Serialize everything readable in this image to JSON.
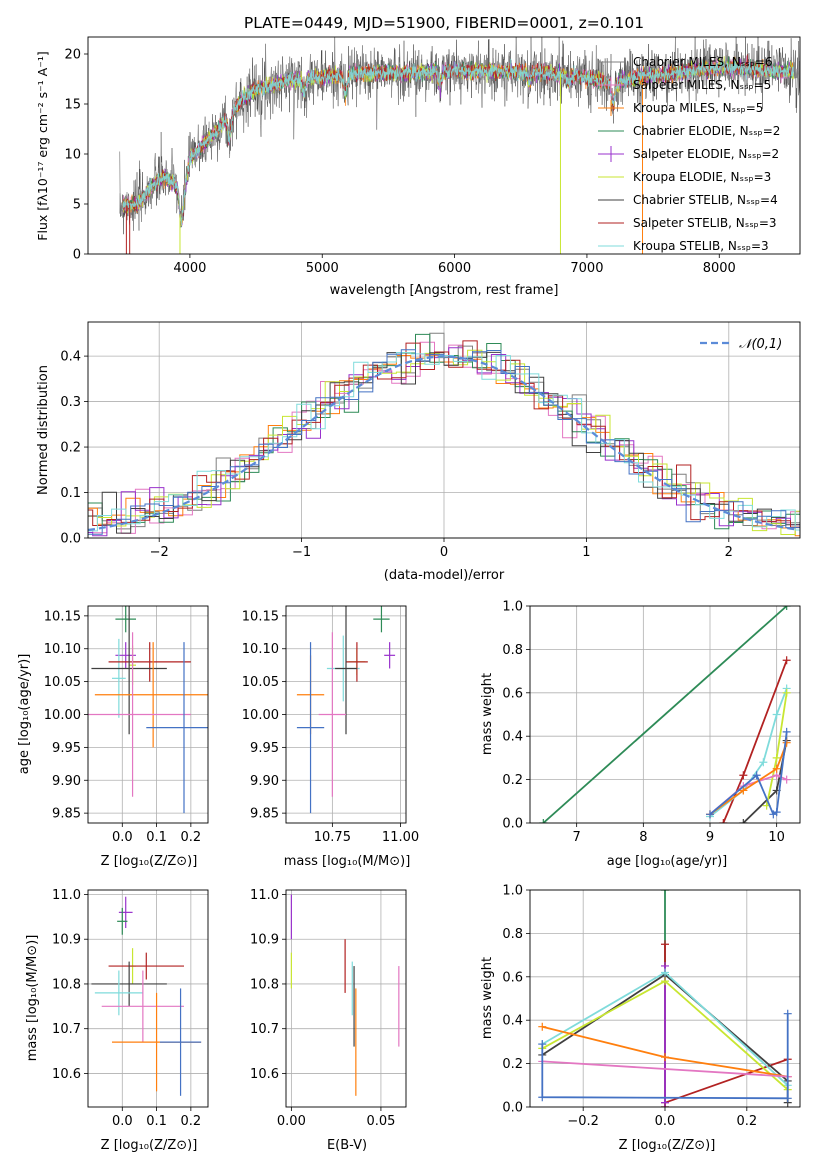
{
  "chart_data": [
    {
      "type": "line",
      "id": "spectrum",
      "title": "PLATE=0449, MJD=51900, FIBERID=0001, z=0.101",
      "xlabel": "wavelength [Angstrom, rest frame]",
      "ylabel": "Flux [fλ10⁻¹⁷ erg cm⁻² s⁻¹ A⁻¹]",
      "xlim": [
        3230,
        8610
      ],
      "ylim": [
        0,
        21.7
      ],
      "xticks": [
        4000,
        5000,
        6000,
        7000,
        8000
      ],
      "yticks": [
        0,
        5,
        10,
        15,
        20
      ],
      "grid": false,
      "legend_position": "upper-right",
      "continuum": {
        "x": [
          3470,
          3600,
          3700,
          3800,
          3900,
          3950,
          4000,
          4100,
          4200,
          4300,
          4400,
          4500,
          4600,
          4700,
          4800,
          4900,
          5000,
          5200,
          5400,
          5600,
          5800,
          6000,
          6200,
          6400,
          6600,
          6800,
          7000,
          7200,
          7400,
          7600,
          7800,
          8000,
          8200,
          8400,
          8610
        ],
        "y": [
          4.8,
          5.0,
          6.5,
          7.8,
          6.8,
          5.8,
          9.5,
          11.0,
          12.2,
          14.0,
          15.5,
          16.5,
          16.8,
          17.2,
          17.5,
          17.7,
          17.6,
          18.0,
          18.1,
          18.1,
          18.2,
          18.3,
          18.3,
          18.2,
          18.2,
          18.0,
          17.6,
          17.0,
          17.8,
          17.9,
          18.4,
          18.7,
          18.6,
          18.3,
          18.2
        ]
      },
      "dips": [
        [
          3934,
          3.0
        ],
        [
          4300,
          2.5
        ],
        [
          4861,
          1.5
        ],
        [
          5175,
          1.8
        ],
        [
          5890,
          1.2
        ],
        [
          6563,
          1.0
        ],
        [
          6860,
          0.8
        ],
        [
          7200,
          2.0
        ]
      ],
      "series": [
        {
          "name": "Chabrier MILES, N_SSP=6",
          "color": "#7f7f7f",
          "marker": "+"
        },
        {
          "name": "Salpeter MILES, N_SSP=5",
          "color": "#e377c2",
          "marker": "+"
        },
        {
          "name": "Kroupa MILES, N_SSP=5",
          "color": "#ff7f0e",
          "marker": "+"
        },
        {
          "name": "Chabrier ELODIE, N_SSP=2",
          "color": "#2e8b57",
          "marker": ""
        },
        {
          "name": "Salpeter ELODIE, N_SSP=2",
          "color": "#9932cc",
          "marker": "+"
        },
        {
          "name": "Kroupa ELODIE, N_SSP=3",
          "color": "#c8e632",
          "marker": ""
        },
        {
          "name": "Chabrier STELIB, N_SSP=4",
          "color": "#404040",
          "marker": ""
        },
        {
          "name": "Salpeter STELIB, N_SSP=3",
          "color": "#b22222",
          "marker": ""
        },
        {
          "name": "Kroupa STELIB, N_SSP=3",
          "color": "#7fdbdb",
          "marker": ""
        }
      ]
    },
    {
      "type": "histogram",
      "id": "residuals",
      "xlabel": "(data-model)/error",
      "ylabel": "Normed distribution",
      "xlim": [
        -2.5,
        2.5
      ],
      "ylim": [
        0,
        0.475
      ],
      "xticks": [
        -2,
        -1,
        0,
        1,
        2
      ],
      "yticks": [
        0.0,
        0.1,
        0.2,
        0.3,
        0.4
      ],
      "grid": true,
      "bin_width": 0.1,
      "legend_position": "upper-right",
      "reference_curve": {
        "name": "𝒩(0,1)",
        "color": "#5b8bd8",
        "dashed": true
      },
      "series_colors": [
        "#7f7f7f",
        "#e377c2",
        "#ff7f0e",
        "#2e8b57",
        "#9932cc",
        "#c8e632",
        "#404040",
        "#b22222",
        "#7fdbdb",
        "#4472c4"
      ]
    },
    {
      "type": "scatter",
      "id": "age-vs-Z",
      "xlabel": "Z [log₁₀(Z/Z⊙)]",
      "ylabel": "age  [log₁₀(age/yr)]",
      "xlim": [
        -0.1,
        0.25
      ],
      "ylim": [
        9.835,
        10.165
      ],
      "xticks": [
        0.0,
        0.1,
        0.2
      ],
      "xtick_labels": [
        "0.0",
        "0.1",
        "0.2"
      ],
      "yticks": [
        9.85,
        9.9,
        9.95,
        10.0,
        10.05,
        10.1,
        10.15
      ],
      "ytick_labels": [
        "9.85",
        "9.90",
        "9.95",
        "10.00",
        "10.05",
        "10.10",
        "10.15"
      ],
      "grid": true,
      "points": [
        {
          "x": 0.01,
          "y": 10.145,
          "xerr": 0.03,
          "yerr": 0.02,
          "color": "#2e8b57"
        },
        {
          "x": 0.01,
          "y": 10.09,
          "xerr": 0.03,
          "yerr": 0.02,
          "color": "#9932cc"
        },
        {
          "x": -0.01,
          "y": 10.055,
          "xerr": 0.02,
          "yerr": 0.06,
          "color": "#7fdbdb"
        },
        {
          "x": 0.03,
          "y": 10.075,
          "xerr": 0.01,
          "yerr": 0.03,
          "color": "#c8e632"
        },
        {
          "x": 0.08,
          "y": 10.08,
          "xerr": 0.12,
          "yerr": 0.03,
          "color": "#b22222"
        },
        {
          "x": 0.02,
          "y": 10.07,
          "xerr": 0.11,
          "yerr": 0.1,
          "color": "#404040"
        },
        {
          "x": 0.09,
          "y": 10.03,
          "xerr": 0.17,
          "yerr": 0.08,
          "color": "#ff7f0e"
        },
        {
          "x": 0.03,
          "y": 10.0,
          "xerr": 0.17,
          "yerr": 0.125,
          "color": "#e377c2"
        },
        {
          "x": 0.18,
          "y": 9.98,
          "xerr": 0.11,
          "yerr": 0.13,
          "color": "#4472c4"
        }
      ]
    },
    {
      "type": "scatter",
      "id": "age-vs-mass",
      "xlabel": "mass [log₁₀(M/M⊙)]",
      "ylabel": "",
      "xlim": [
        10.58,
        11.02
      ],
      "ylim": [
        9.835,
        10.165
      ],
      "xticks": [
        10.75,
        11.0
      ],
      "xtick_labels": [
        "10.75",
        "11.00"
      ],
      "yticks": [
        9.85,
        9.9,
        9.95,
        10.0,
        10.05,
        10.1,
        10.15
      ],
      "ytick_labels": [
        "9.85",
        "9.90",
        "9.95",
        "10.00",
        "10.05",
        "10.10",
        "10.15"
      ],
      "grid": true,
      "points": [
        {
          "x": 10.93,
          "y": 10.145,
          "xerr": 0.03,
          "yerr": 0.02,
          "color": "#2e8b57"
        },
        {
          "x": 10.96,
          "y": 10.09,
          "xerr": 0.02,
          "yerr": 0.02,
          "color": "#9932cc"
        },
        {
          "x": 10.79,
          "y": 10.07,
          "xerr": 0.06,
          "yerr": 0.05,
          "color": "#7fdbdb"
        },
        {
          "x": 10.84,
          "y": 10.08,
          "xerr": 0.03,
          "yerr": 0.02,
          "color": "#c8e632"
        },
        {
          "x": 10.84,
          "y": 10.08,
          "xerr": 0.04,
          "yerr": 0.03,
          "color": "#b22222"
        },
        {
          "x": 10.8,
          "y": 10.07,
          "xerr": 0.04,
          "yerr": 0.1,
          "color": "#404040"
        },
        {
          "x": 10.67,
          "y": 10.03,
          "xerr": 0.05,
          "yerr": 0.06,
          "color": "#ff7f0e"
        },
        {
          "x": 10.75,
          "y": 10.0,
          "xerr": 0.05,
          "yerr": 0.125,
          "color": "#e377c2"
        },
        {
          "x": 10.67,
          "y": 9.98,
          "xerr": 0.05,
          "yerr": 0.13,
          "color": "#4472c4"
        }
      ]
    },
    {
      "type": "line",
      "id": "weight-vs-age",
      "xlabel": "age  [log₁₀(age/yr)]",
      "ylabel": "mass weight",
      "xlim": [
        6.3,
        10.35
      ],
      "ylim": [
        0,
        1.0
      ],
      "xticks": [
        7,
        8,
        9,
        10
      ],
      "yticks": [
        0.0,
        0.2,
        0.4,
        0.6,
        0.8,
        1.0
      ],
      "ytick_labels": [
        "0.0",
        "0.2",
        "0.4",
        "0.6",
        "0.8",
        "1.0"
      ],
      "grid": true,
      "series": [
        {
          "color": "#2e8b57",
          "x": [
            6.5,
            10.15
          ],
          "y": [
            0.0,
            1.0
          ]
        },
        {
          "color": "#b22222",
          "x": [
            9.2,
            9.5,
            10.15
          ],
          "y": [
            0.0,
            0.22,
            0.75
          ]
        },
        {
          "color": "#404040",
          "x": [
            9.5,
            10.0,
            10.15
          ],
          "y": [
            0.0,
            0.15,
            0.38
          ]
        },
        {
          "color": "#7fdbdb",
          "x": [
            9.0,
            9.5,
            9.8,
            10.0,
            10.15
          ],
          "y": [
            0.03,
            0.15,
            0.28,
            0.5,
            0.62
          ]
        },
        {
          "color": "#c8e632",
          "x": [
            9.85,
            10.0,
            10.15
          ],
          "y": [
            0.08,
            0.3,
            0.6
          ]
        },
        {
          "color": "#e377c2",
          "x": [
            9.0,
            9.5,
            10.0,
            10.15
          ],
          "y": [
            0.04,
            0.17,
            0.22,
            0.2
          ]
        },
        {
          "color": "#ff7f0e",
          "x": [
            9.0,
            9.5,
            10.0,
            10.15
          ],
          "y": [
            0.04,
            0.15,
            0.25,
            0.37
          ]
        },
        {
          "color": "#4472c4",
          "x": [
            9.0,
            9.7,
            9.95,
            10.0,
            10.15
          ],
          "y": [
            0.04,
            0.22,
            0.04,
            0.05,
            0.42
          ]
        }
      ]
    },
    {
      "type": "scatter",
      "id": "mass-vs-Z",
      "xlabel": "Z [log₁₀(Z/Z⊙)]",
      "ylabel": "mass [log₁₀(M/M⊙)]",
      "xlim": [
        -0.1,
        0.25
      ],
      "ylim": [
        10.525,
        11.01
      ],
      "xticks": [
        0.0,
        0.1,
        0.2
      ],
      "xtick_labels": [
        "0.0",
        "0.1",
        "0.2"
      ],
      "yticks": [
        10.6,
        10.7,
        10.8,
        10.9,
        11.0
      ],
      "ytick_labels": [
        "10.6",
        "10.7",
        "10.8",
        "10.9",
        "11.0"
      ],
      "grid": true,
      "points": [
        {
          "x": 0.01,
          "y": 10.96,
          "xerr": 0.02,
          "yerr": 0.035,
          "color": "#9932cc"
        },
        {
          "x": 0.0,
          "y": 10.94,
          "xerr": 0.015,
          "yerr": 0.03,
          "color": "#2e8b57"
        },
        {
          "x": 0.03,
          "y": 10.84,
          "xerr": 0.01,
          "yerr": 0.04,
          "color": "#c8e632"
        },
        {
          "x": 0.07,
          "y": 10.84,
          "xerr": 0.11,
          "yerr": 0.03,
          "color": "#b22222"
        },
        {
          "x": 0.02,
          "y": 10.8,
          "xerr": 0.11,
          "yerr": 0.05,
          "color": "#404040"
        },
        {
          "x": -0.01,
          "y": 10.78,
          "xerr": 0.07,
          "yerr": 0.05,
          "color": "#7fdbdb"
        },
        {
          "x": 0.06,
          "y": 10.75,
          "xerr": 0.12,
          "yerr": 0.08,
          "color": "#e377c2"
        },
        {
          "x": 0.1,
          "y": 10.67,
          "xerr": 0.13,
          "yerr": 0.11,
          "color": "#ff7f0e"
        },
        {
          "x": 0.17,
          "y": 10.67,
          "xerr": 0.06,
          "yerr": 0.12,
          "color": "#4472c4"
        }
      ]
    },
    {
      "type": "scatter",
      "id": "mass-vs-ebv",
      "xlabel": "E(B-V)",
      "ylabel": "",
      "xlim": [
        -0.003,
        0.064
      ],
      "ylim": [
        10.525,
        11.01
      ],
      "xticks": [
        0.0,
        0.05
      ],
      "xtick_labels": [
        "0.00",
        "0.05"
      ],
      "yticks": [
        10.6,
        10.7,
        10.8,
        10.9,
        11.0
      ],
      "ytick_labels": [
        "10.6",
        "10.7",
        "10.8",
        "10.9",
        "11.0"
      ],
      "grid": true,
      "points": [
        {
          "x": 0.0,
          "y": 10.95,
          "xerr": 0,
          "yerr": 0.05,
          "color": "#9932cc"
        },
        {
          "x": 0.0,
          "y": 10.83,
          "xerr": 0,
          "yerr": 0.04,
          "color": "#c8e632"
        },
        {
          "x": 0.03,
          "y": 10.84,
          "xerr": 0,
          "yerr": 0.06,
          "color": "#b22222"
        },
        {
          "x": 0.034,
          "y": 10.79,
          "xerr": 0,
          "yerr": 0.06,
          "color": "#7fdbdb"
        },
        {
          "x": 0.035,
          "y": 10.75,
          "xerr": 0,
          "yerr": 0.09,
          "color": "#404040"
        },
        {
          "x": 0.036,
          "y": 10.67,
          "xerr": 0,
          "yerr": 0.12,
          "color": "#ff7f0e"
        },
        {
          "x": 0.06,
          "y": 10.75,
          "xerr": 0,
          "yerr": 0.09,
          "color": "#e377c2"
        }
      ]
    },
    {
      "type": "line",
      "id": "weight-vs-Z",
      "xlabel": "Z [log₁₀(Z/Z⊙)]",
      "ylabel": "mass weight",
      "xlim": [
        -0.33,
        0.33
      ],
      "ylim": [
        0,
        1.0
      ],
      "xticks": [
        -0.2,
        0.0,
        0.2
      ],
      "xtick_labels": [
        "−0.2",
        "0.0",
        "0.2"
      ],
      "yticks": [
        0.0,
        0.2,
        0.4,
        0.6,
        0.8,
        1.0
      ],
      "ytick_labels": [
        "0.0",
        "0.2",
        "0.4",
        "0.6",
        "0.8",
        "1.0"
      ],
      "grid": true,
      "series": [
        {
          "color": "#2e8b57",
          "x": [
            0.0,
            0.0
          ],
          "y": [
            0.0,
            1.0
          ]
        },
        {
          "color": "#b22222",
          "x": [
            0.0,
            0.0,
            0.0,
            0.3
          ],
          "y": [
            0.75,
            0.0,
            0.02,
            0.22
          ]
        },
        {
          "color": "#9932cc",
          "x": [
            0.0,
            0.0
          ],
          "y": [
            0.65,
            0.02
          ]
        },
        {
          "color": "#404040",
          "x": [
            -0.3,
            0.0,
            0.3,
            0.3
          ],
          "y": [
            0.24,
            0.61,
            0.12,
            0.02
          ]
        },
        {
          "color": "#7fdbdb",
          "x": [
            -0.3,
            0.0,
            0.3
          ],
          "y": [
            0.29,
            0.62,
            0.1
          ]
        },
        {
          "color": "#c8e632",
          "x": [
            -0.3,
            0.0,
            0.3
          ],
          "y": [
            0.27,
            0.58,
            0.08
          ]
        },
        {
          "color": "#ff7f0e",
          "x": [
            -0.3,
            0.0,
            0.3
          ],
          "y": [
            0.37,
            0.23,
            0.14
          ]
        },
        {
          "color": "#e377c2",
          "x": [
            -0.3,
            0.3
          ],
          "y": [
            0.21,
            0.14
          ]
        },
        {
          "color": "#4472c4",
          "x": [
            -0.3,
            -0.3,
            0.3,
            0.3
          ],
          "y": [
            0.29,
            0.045,
            0.04,
            0.43
          ]
        }
      ]
    }
  ]
}
